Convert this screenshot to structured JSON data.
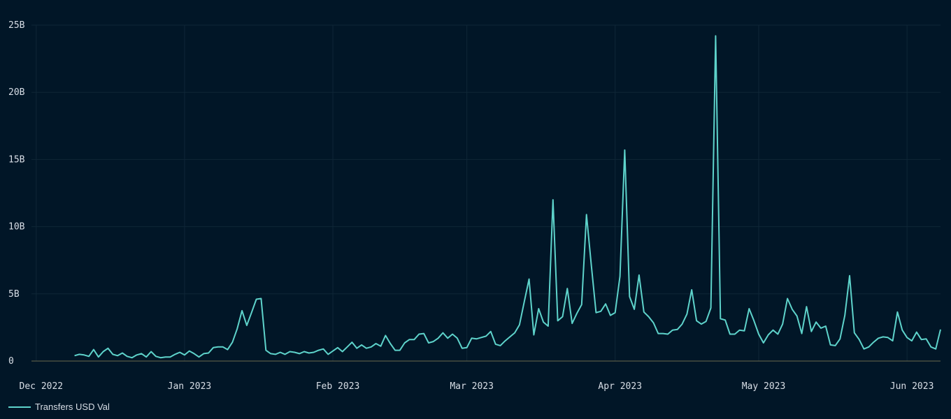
{
  "chart_data": {
    "type": "line",
    "title": "",
    "xlabel": "",
    "ylabel": "",
    "x_start": "2022-12-09",
    "x_end": "2023-06-05",
    "xlim": [
      "2022-11-30",
      "2023-06-08"
    ],
    "x_ticks": [
      {
        "label": "Dec 2022",
        "date": "2022-12-01"
      },
      {
        "label": "Jan 2023",
        "date": "2023-01-01"
      },
      {
        "label": "Feb 2023",
        "date": "2023-02-01"
      },
      {
        "label": "Mar 2023",
        "date": "2023-03-01"
      },
      {
        "label": "Apr 2023",
        "date": "2023-04-01"
      },
      {
        "label": "May 2023",
        "date": "2023-05-01"
      },
      {
        "label": "Jun 2023",
        "date": "2023-06-01"
      }
    ],
    "y_ticks": [
      {
        "label": "0",
        "value": 0
      },
      {
        "label": "5B",
        "value": 5
      },
      {
        "label": "10B",
        "value": 10
      },
      {
        "label": "15B",
        "value": 15
      },
      {
        "label": "20B",
        "value": 20
      },
      {
        "label": "25B",
        "value": 25
      }
    ],
    "ylim": [
      0,
      25
    ],
    "y_unit": "billions USD",
    "grid": true,
    "legend_position": "bottom-left",
    "series": [
      {
        "name": "Transfers USD Val",
        "color": "#5ed3cb",
        "values": [
          0.4,
          0.5,
          0.45,
          0.35,
          0.85,
          0.3,
          0.7,
          0.95,
          0.5,
          0.4,
          0.6,
          0.35,
          0.25,
          0.45,
          0.55,
          0.3,
          0.7,
          0.35,
          0.25,
          0.3,
          0.3,
          0.5,
          0.65,
          0.45,
          0.75,
          0.55,
          0.3,
          0.55,
          0.6,
          1.0,
          1.05,
          1.05,
          0.85,
          1.4,
          2.4,
          3.75,
          2.65,
          3.6,
          4.6,
          4.65,
          0.8,
          0.55,
          0.5,
          0.65,
          0.5,
          0.7,
          0.65,
          0.55,
          0.7,
          0.6,
          0.65,
          0.8,
          0.9,
          0.5,
          0.75,
          1.0,
          0.7,
          1.05,
          1.4,
          0.95,
          1.2,
          0.95,
          1.05,
          1.3,
          1.1,
          1.9,
          1.3,
          0.8,
          0.8,
          1.35,
          1.6,
          1.6,
          2.0,
          2.05,
          1.35,
          1.45,
          1.7,
          2.1,
          1.7,
          2.0,
          1.7,
          0.95,
          1.0,
          1.7,
          1.65,
          1.75,
          1.85,
          2.2,
          1.25,
          1.15,
          1.5,
          1.8,
          2.1,
          2.7,
          4.4,
          6.1,
          1.95,
          3.9,
          2.9,
          2.6,
          12.0,
          3.0,
          3.3,
          5.4,
          2.8,
          3.55,
          4.2,
          10.9,
          7.2,
          3.6,
          3.7,
          4.25,
          3.4,
          3.6,
          6.3,
          15.7,
          4.8,
          3.85,
          6.4,
          3.65,
          3.3,
          2.85,
          2.05,
          2.05,
          2.0,
          2.3,
          2.35,
          2.75,
          3.5,
          5.3,
          3.0,
          2.75,
          2.95,
          3.95,
          24.2,
          3.15,
          3.05,
          2.0,
          2.0,
          2.3,
          2.25,
          3.9,
          3.0,
          2.0,
          1.35,
          1.95,
          2.3,
          2.0,
          2.75,
          4.65,
          3.85,
          3.35,
          2.05,
          4.05,
          2.2,
          2.9,
          2.45,
          2.6,
          1.2,
          1.15,
          1.65,
          3.4,
          6.35,
          2.1,
          1.6,
          0.9,
          1.05,
          1.4,
          1.7,
          1.8,
          1.75,
          1.5,
          3.65,
          2.3,
          1.75,
          1.5,
          2.15,
          1.6,
          1.65,
          1.05,
          0.9,
          2.35
        ]
      }
    ]
  }
}
